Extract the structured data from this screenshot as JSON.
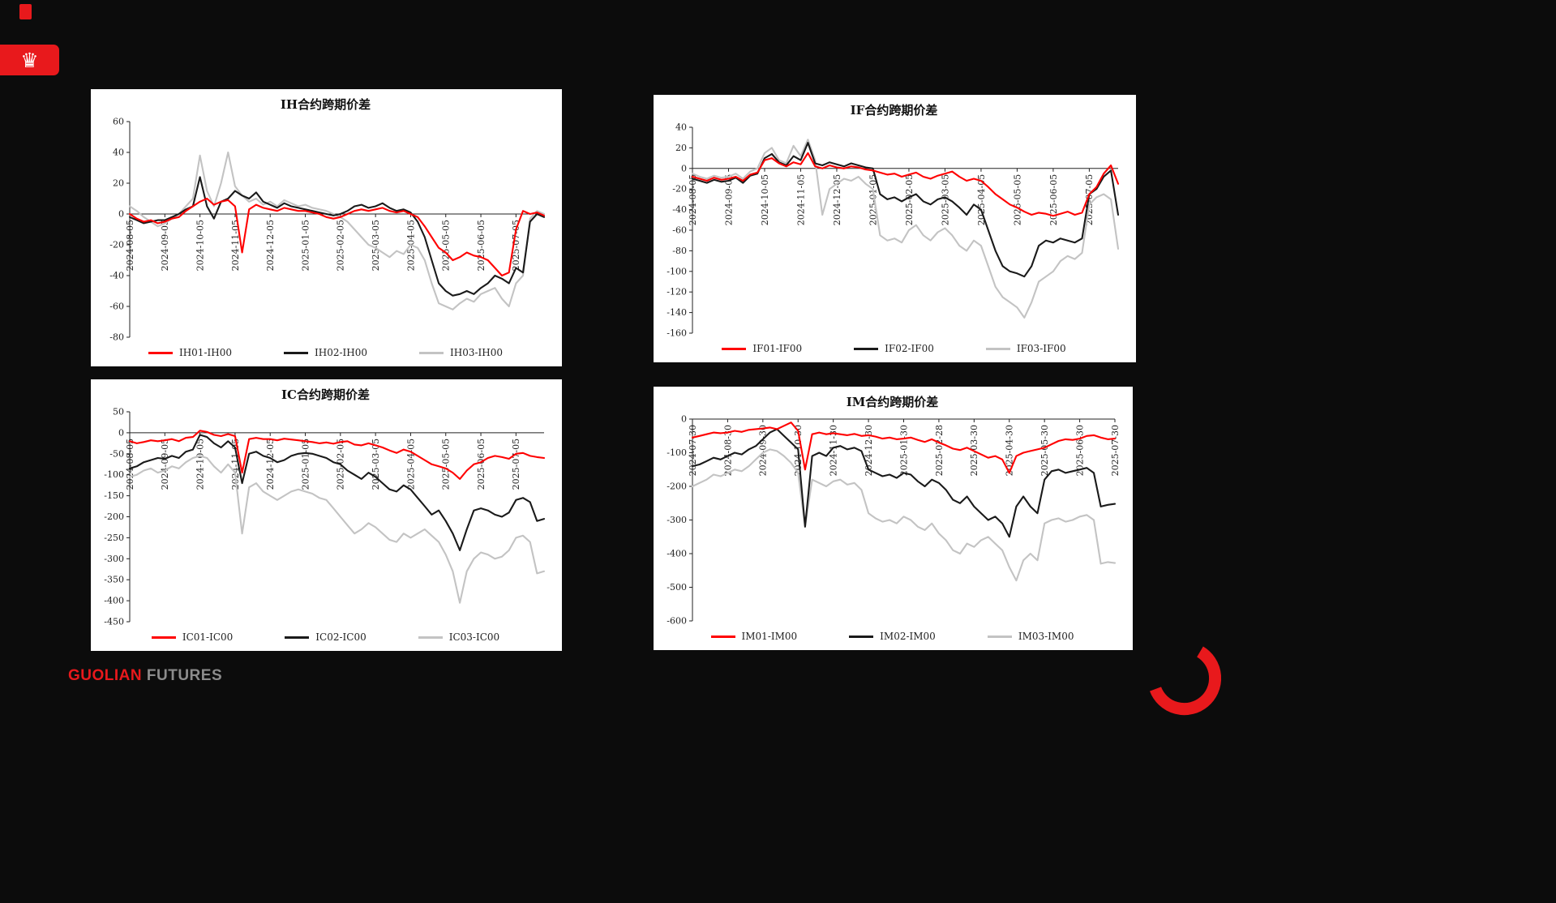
{
  "brand": {
    "badge_bg": "#e8191c",
    "accent_color": "#e8191c",
    "footer": {
      "primary": "GUOLIAN",
      "secondary": "FUTURES",
      "primary_color": "#e8191c",
      "secondary_color": "#8c8c8c"
    },
    "arc_color": "#e8191c",
    "crown_glyph": "♛"
  },
  "chart_data": [
    {
      "id": "IH",
      "type": "line",
      "title": "IH合约跨期价差",
      "ylim": [
        -80,
        60
      ],
      "ytick_step": 20,
      "xlabel_every": 5,
      "legend_position": "bottom",
      "grid": false,
      "x_labels": [
        "2024-08-05",
        "2024-09-05",
        "2024-10-05",
        "2024-11-05",
        "2024-12-05",
        "2025-01-05",
        "2025-02-05",
        "2025-03-05",
        "2025-04-05",
        "2025-05-05",
        "2025-06-05",
        "2025-07-05"
      ],
      "series": [
        {
          "name": "IH01-IH00",
          "color": "#ff0000",
          "values": [
            0,
            -3,
            -5,
            -4,
            -6,
            -5,
            -3,
            -2,
            2,
            5,
            8,
            10,
            6,
            8,
            9,
            5,
            -25,
            3,
            6,
            4,
            3,
            2,
            4,
            3,
            2,
            2,
            1,
            0,
            -2,
            -3,
            -2,
            0,
            2,
            3,
            2,
            3,
            4,
            2,
            1,
            2,
            0,
            -2,
            -8,
            -15,
            -22,
            -25,
            -30,
            -28,
            -25,
            -27,
            -28,
            -30,
            -35,
            -40,
            -38,
            -10,
            2,
            0,
            1,
            -1
          ]
        },
        {
          "name": "IH02-IH00",
          "color": "#1a1a1a",
          "values": [
            -2,
            -4,
            -6,
            -5,
            -4,
            -4,
            -2,
            0,
            3,
            5,
            24,
            5,
            -3,
            8,
            10,
            15,
            12,
            10,
            14,
            8,
            6,
            4,
            7,
            5,
            4,
            3,
            2,
            1,
            0,
            -1,
            0,
            2,
            5,
            6,
            4,
            5,
            7,
            4,
            2,
            3,
            1,
            -5,
            -15,
            -30,
            -45,
            -50,
            -53,
            -52,
            -50,
            -52,
            -48,
            -45,
            -40,
            -42,
            -45,
            -35,
            -38,
            -5,
            0,
            -2
          ]
        },
        {
          "name": "IH03-IH00",
          "color": "#c3c3c3",
          "values": [
            5,
            2,
            -2,
            -5,
            -8,
            -6,
            -3,
            0,
            5,
            10,
            38,
            15,
            5,
            20,
            40,
            18,
            12,
            8,
            10,
            6,
            8,
            5,
            9,
            7,
            5,
            6,
            4,
            3,
            2,
            0,
            -2,
            -5,
            -10,
            -15,
            -20,
            -22,
            -25,
            -28,
            -24,
            -26,
            -20,
            -22,
            -30,
            -45,
            -58,
            -60,
            -62,
            -58,
            -55,
            -57,
            -52,
            -50,
            -48,
            -55,
            -60,
            -45,
            -40,
            -3,
            2,
            0
          ]
        }
      ]
    },
    {
      "id": "IF",
      "type": "line",
      "title": "IF合约跨期价差",
      "ylim": [
        -160,
        40
      ],
      "ytick_step": 20,
      "xlabel_every": 5,
      "legend_position": "bottom",
      "grid": false,
      "x_labels": [
        "2024-08-05",
        "2024-09-05",
        "2024-10-05",
        "2024-11-05",
        "2024-12-05",
        "2025-01-05",
        "2025-02-05",
        "2025-03-05",
        "2025-04-05",
        "2025-05-05",
        "2025-06-05",
        "2025-07-05"
      ],
      "series": [
        {
          "name": "IF01-IF00",
          "color": "#ff0000",
          "values": [
            -8,
            -10,
            -12,
            -9,
            -11,
            -10,
            -8,
            -12,
            -6,
            -4,
            8,
            10,
            5,
            2,
            6,
            4,
            15,
            2,
            0,
            3,
            1,
            0,
            2,
            1,
            -1,
            -2,
            -4,
            -6,
            -5,
            -8,
            -6,
            -4,
            -8,
            -10,
            -7,
            -5,
            -3,
            -8,
            -12,
            -10,
            -12,
            -18,
            -25,
            -30,
            -35,
            -38,
            -42,
            -45,
            -43,
            -44,
            -46,
            -44,
            -42,
            -45,
            -43,
            -25,
            -18,
            -5,
            3,
            -15
          ]
        },
        {
          "name": "IF02-IF00",
          "color": "#1a1a1a",
          "values": [
            -10,
            -12,
            -14,
            -11,
            -13,
            -12,
            -9,
            -14,
            -7,
            -5,
            10,
            14,
            6,
            3,
            12,
            8,
            25,
            5,
            3,
            6,
            4,
            2,
            5,
            3,
            1,
            0,
            -25,
            -30,
            -28,
            -32,
            -28,
            -25,
            -32,
            -35,
            -30,
            -28,
            -32,
            -38,
            -45,
            -35,
            -40,
            -60,
            -80,
            -95,
            -100,
            -102,
            -105,
            -95,
            -75,
            -70,
            -72,
            -68,
            -70,
            -72,
            -68,
            -25,
            -20,
            -8,
            -2,
            -45
          ]
        },
        {
          "name": "IF03-IF00",
          "color": "#c3c3c3",
          "values": [
            -5,
            -8,
            -10,
            -7,
            -9,
            -8,
            -5,
            -10,
            -3,
            0,
            15,
            20,
            8,
            5,
            22,
            12,
            28,
            8,
            -45,
            -20,
            -15,
            -10,
            -12,
            -8,
            -15,
            -20,
            -65,
            -70,
            -68,
            -72,
            -60,
            -55,
            -65,
            -70,
            -62,
            -58,
            -65,
            -75,
            -80,
            -70,
            -75,
            -95,
            -115,
            -125,
            -130,
            -135,
            -145,
            -130,
            -110,
            -105,
            -100,
            -90,
            -85,
            -88,
            -82,
            -35,
            -28,
            -25,
            -30,
            -78
          ]
        }
      ]
    },
    {
      "id": "IC",
      "type": "line",
      "title": "IC合约跨期价差",
      "ylim": [
        -450,
        50
      ],
      "ytick_step": 50,
      "xlabel_every": 5,
      "legend_position": "bottom",
      "grid": false,
      "x_labels": [
        "2024-08-05",
        "2024-09-05",
        "2024-10-05",
        "2024-11-05",
        "2024-12-05",
        "2025-01-05",
        "2025-02-05",
        "2025-03-05",
        "2025-04-05",
        "2025-05-05",
        "2025-06-05",
        "2025-07-05"
      ],
      "series": [
        {
          "name": "IC01-IC00",
          "color": "#ff0000",
          "values": [
            -20,
            -25,
            -22,
            -18,
            -20,
            -18,
            -15,
            -20,
            -12,
            -10,
            5,
            2,
            -5,
            -8,
            -3,
            -8,
            -95,
            -15,
            -12,
            -15,
            -15,
            -18,
            -14,
            -16,
            -18,
            -20,
            -22,
            -25,
            -23,
            -26,
            -22,
            -20,
            -28,
            -30,
            -25,
            -30,
            -35,
            -42,
            -48,
            -40,
            -45,
            -55,
            -65,
            -75,
            -80,
            -85,
            -95,
            -110,
            -90,
            -75,
            -70,
            -60,
            -55,
            -58,
            -62,
            -50,
            -48,
            -55,
            -58,
            -60
          ]
        },
        {
          "name": "IC02-IC00",
          "color": "#1a1a1a",
          "values": [
            -85,
            -80,
            -70,
            -65,
            -60,
            -62,
            -55,
            -60,
            -45,
            -40,
            -5,
            -10,
            -25,
            -35,
            -20,
            -35,
            -120,
            -50,
            -45,
            -55,
            -60,
            -70,
            -65,
            -55,
            -50,
            -48,
            -50,
            -55,
            -60,
            -70,
            -75,
            -90,
            -100,
            -110,
            -95,
            -105,
            -120,
            -135,
            -140,
            -125,
            -135,
            -155,
            -175,
            -195,
            -185,
            -210,
            -240,
            -280,
            -230,
            -185,
            -180,
            -185,
            -195,
            -200,
            -190,
            -160,
            -155,
            -165,
            -210,
            -205
          ]
        },
        {
          "name": "IC03-IC00",
          "color": "#c3c3c3",
          "values": [
            -105,
            -100,
            -90,
            -85,
            -95,
            -90,
            -80,
            -85,
            -70,
            -60,
            -55,
            -60,
            -80,
            -95,
            -75,
            -95,
            -240,
            -130,
            -120,
            -140,
            -150,
            -160,
            -150,
            -140,
            -135,
            -140,
            -145,
            -155,
            -160,
            -180,
            -200,
            -220,
            -240,
            -230,
            -215,
            -225,
            -240,
            -255,
            -260,
            -240,
            -250,
            -240,
            -230,
            -245,
            -260,
            -290,
            -330,
            -405,
            -330,
            -300,
            -285,
            -290,
            -300,
            -295,
            -280,
            -250,
            -245,
            -260,
            -335,
            -330
          ]
        }
      ]
    },
    {
      "id": "IM",
      "type": "line",
      "title": "IM合约跨期价差",
      "ylim": [
        -600,
        0
      ],
      "ytick_step": 100,
      "xlabel_every": 5,
      "legend_position": "bottom",
      "grid": false,
      "x_labels": [
        "2024-07-30",
        "2024-08-30",
        "2024-09-30",
        "2024-10-30",
        "2024-11-30",
        "2024-12-30",
        "2025-01-30",
        "2025-02-28",
        "2025-03-30",
        "2025-04-30",
        "2025-05-30",
        "2025-06-30",
        "2025-07-30"
      ],
      "series": [
        {
          "name": "IM01-IM00",
          "color": "#ff0000",
          "values": [
            -55,
            -50,
            -45,
            -40,
            -42,
            -40,
            -35,
            -38,
            -32,
            -30,
            -28,
            -25,
            -30,
            -20,
            -10,
            -35,
            -150,
            -45,
            -40,
            -45,
            -42,
            -45,
            -48,
            -44,
            -50,
            -48,
            -52,
            -58,
            -55,
            -60,
            -58,
            -55,
            -62,
            -68,
            -60,
            -70,
            -78,
            -88,
            -92,
            -85,
            -95,
            -105,
            -115,
            -110,
            -120,
            -160,
            -110,
            -100,
            -95,
            -90,
            -85,
            -75,
            -65,
            -60,
            -62,
            -58,
            -50,
            -48,
            -55,
            -60,
            -58
          ]
        },
        {
          "name": "IM02-IM00",
          "color": "#1a1a1a",
          "values": [
            -140,
            -135,
            -125,
            -115,
            -120,
            -110,
            -100,
            -105,
            -90,
            -80,
            -60,
            -40,
            -30,
            -50,
            -70,
            -90,
            -320,
            -110,
            -100,
            -110,
            -85,
            -80,
            -90,
            -85,
            -95,
            -150,
            -160,
            -170,
            -165,
            -175,
            -160,
            -165,
            -185,
            -200,
            -180,
            -190,
            -210,
            -240,
            -250,
            -230,
            -260,
            -280,
            -300,
            -290,
            -310,
            -350,
            -260,
            -230,
            -260,
            -280,
            -180,
            -155,
            -150,
            -160,
            -155,
            -150,
            -145,
            -160,
            -260,
            -255,
            -252
          ]
        },
        {
          "name": "IM03-IM00",
          "color": "#c3c3c3",
          "values": [
            -200,
            -190,
            -180,
            -165,
            -170,
            -160,
            -150,
            -155,
            -140,
            -120,
            -100,
            -90,
            -95,
            -110,
            -130,
            -160,
            -320,
            -180,
            -190,
            -200,
            -185,
            -180,
            -195,
            -190,
            -210,
            -280,
            -295,
            -305,
            -300,
            -310,
            -290,
            -300,
            -320,
            -330,
            -310,
            -340,
            -360,
            -390,
            -400,
            -370,
            -380,
            -360,
            -350,
            -370,
            -390,
            -440,
            -480,
            -420,
            -400,
            -420,
            -310,
            -300,
            -295,
            -305,
            -300,
            -290,
            -285,
            -300,
            -430,
            -425,
            -428
          ]
        }
      ]
    }
  ]
}
